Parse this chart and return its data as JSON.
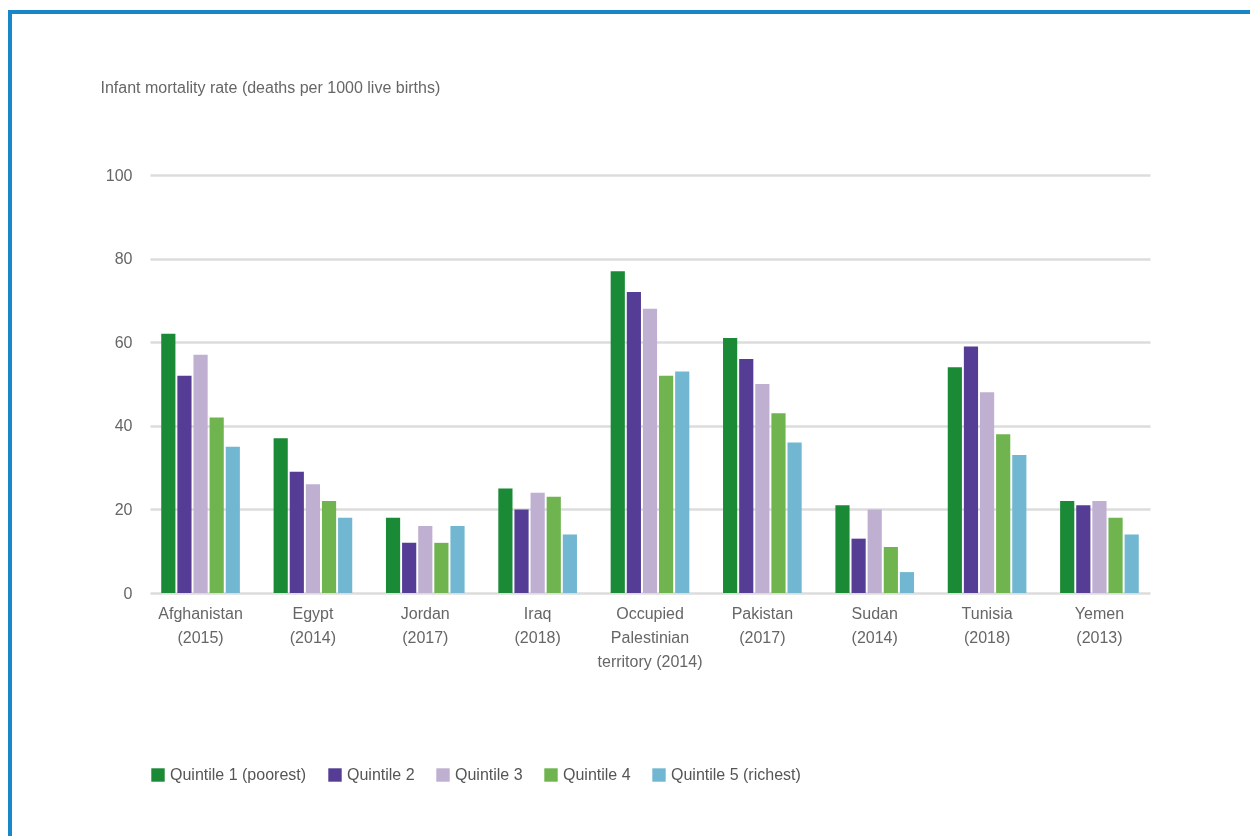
{
  "chart_data": {
    "type": "bar",
    "ylabel": "Infant mortality rate (deaths per 1000 live births)",
    "categories": [
      "Afghanistan (2015)",
      "Egypt (2014)",
      "Jordan (2017)",
      "Iraq (2018)",
      "Occupied Palestinian territory (2014)",
      "Pakistan (2017)",
      "Sudan (2014)",
      "Tunisia (2018)",
      "Yemen (2013)"
    ],
    "series": [
      {
        "name": "Quintile 1 (poorest)",
        "color": "#1b8a37",
        "values": [
          62,
          37,
          18,
          25,
          77,
          61,
          21,
          54,
          22
        ]
      },
      {
        "name": "Quintile 2",
        "color": "#553d96",
        "values": [
          52,
          29,
          12,
          20,
          72,
          56,
          13,
          59,
          21
        ]
      },
      {
        "name": "Quintile 3",
        "color": "#bfb0d2",
        "values": [
          57,
          26,
          16,
          24,
          68,
          50,
          20,
          48,
          22
        ]
      },
      {
        "name": "Quintile 4",
        "color": "#6fb44f",
        "values": [
          42,
          22,
          12,
          23,
          52,
          43,
          11,
          38,
          18
        ]
      },
      {
        "name": "Quintile 5 (richest)",
        "color": "#72b7d2",
        "values": [
          35,
          18,
          16,
          14,
          53,
          36,
          5,
          33,
          14
        ]
      }
    ],
    "ylim": [
      0,
      100
    ],
    "yticks": [
      0,
      20,
      40,
      60,
      80,
      100
    ],
    "grid": "y",
    "legend": "bottom"
  }
}
